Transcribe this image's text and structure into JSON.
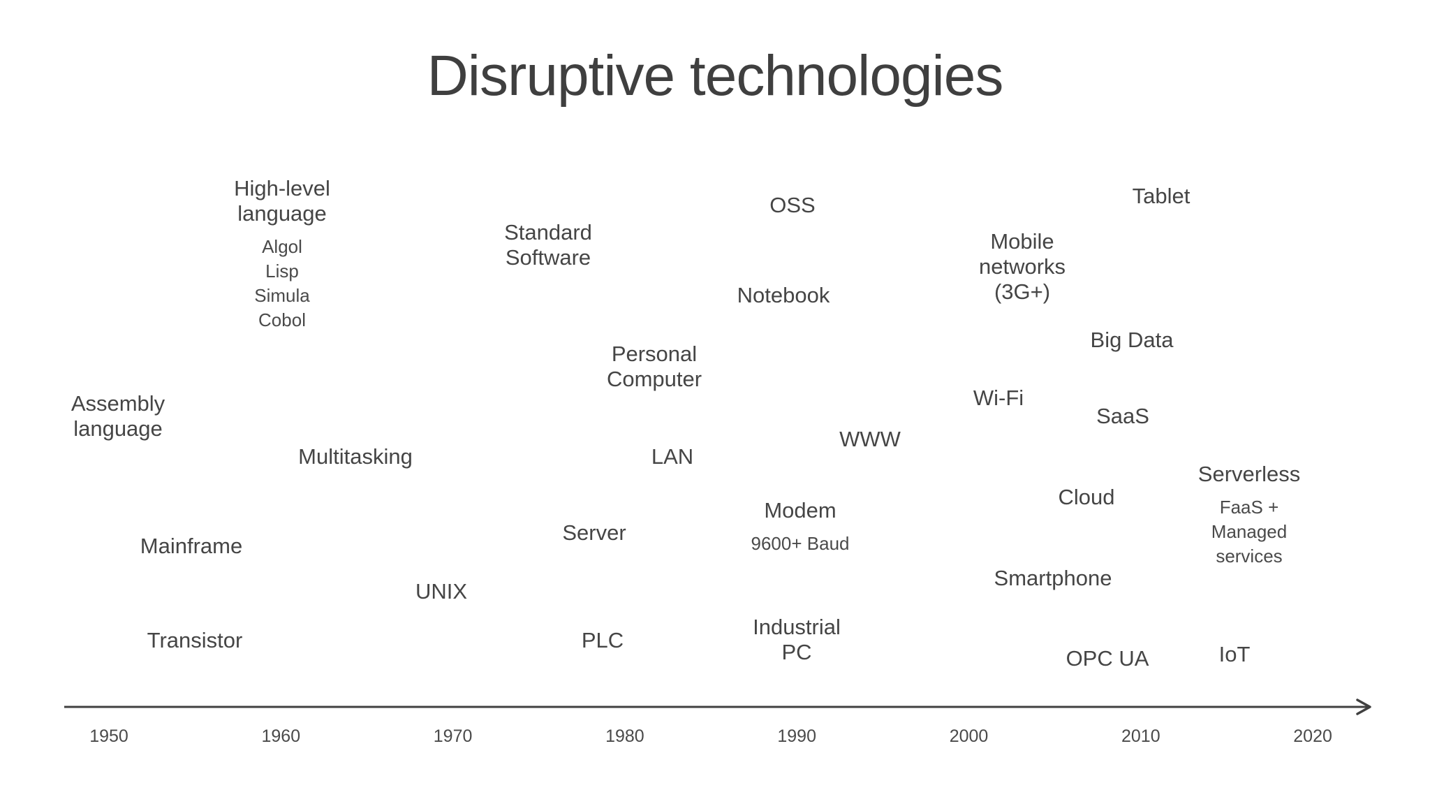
{
  "title": "Disruptive technologies",
  "axis": {
    "years": [
      "1950",
      "1960",
      "1970",
      "1980",
      "1990",
      "2000",
      "2010",
      "2020"
    ]
  },
  "items": [
    {
      "id": "high-level-language",
      "label": [
        "High-level",
        "language"
      ],
      "sub": [
        "Algol",
        "Lisp",
        "Simula",
        "Cobol"
      ]
    },
    {
      "id": "assembly-language",
      "label": [
        "Assembly",
        "language"
      ]
    },
    {
      "id": "multitasking",
      "label": [
        "Multitasking"
      ]
    },
    {
      "id": "mainframe",
      "label": [
        "Mainframe"
      ]
    },
    {
      "id": "transistor",
      "label": [
        "Transistor"
      ]
    },
    {
      "id": "unix",
      "label": [
        "UNIX"
      ]
    },
    {
      "id": "standard-software",
      "label": [
        "Standard",
        "Software"
      ]
    },
    {
      "id": "personal-computer",
      "label": [
        "Personal",
        "Computer"
      ]
    },
    {
      "id": "lan",
      "label": [
        "LAN"
      ]
    },
    {
      "id": "server",
      "label": [
        "Server"
      ]
    },
    {
      "id": "plc",
      "label": [
        "PLC"
      ]
    },
    {
      "id": "oss",
      "label": [
        "OSS"
      ]
    },
    {
      "id": "notebook",
      "label": [
        "Notebook"
      ]
    },
    {
      "id": "www",
      "label": [
        "WWW"
      ]
    },
    {
      "id": "modem",
      "label": [
        "Modem"
      ],
      "sub": [
        "9600+ Baud"
      ]
    },
    {
      "id": "industrial-pc",
      "label": [
        "Industrial",
        "PC"
      ]
    },
    {
      "id": "mobile-networks",
      "label": [
        "Mobile",
        "networks",
        "(3G+)"
      ]
    },
    {
      "id": "wi-fi",
      "label": [
        "Wi-Fi"
      ]
    },
    {
      "id": "smartphone",
      "label": [
        "Smartphone"
      ]
    },
    {
      "id": "tablet",
      "label": [
        "Tablet"
      ]
    },
    {
      "id": "big-data",
      "label": [
        "Big Data"
      ]
    },
    {
      "id": "saas",
      "label": [
        "SaaS"
      ]
    },
    {
      "id": "cloud",
      "label": [
        "Cloud"
      ]
    },
    {
      "id": "opc-ua",
      "label": [
        "OPC UA"
      ]
    },
    {
      "id": "serverless",
      "label": [
        "Serverless"
      ],
      "sub": [
        "FaaS +",
        "Managed",
        "services"
      ]
    },
    {
      "id": "iot",
      "label": [
        "IoT"
      ]
    }
  ]
}
